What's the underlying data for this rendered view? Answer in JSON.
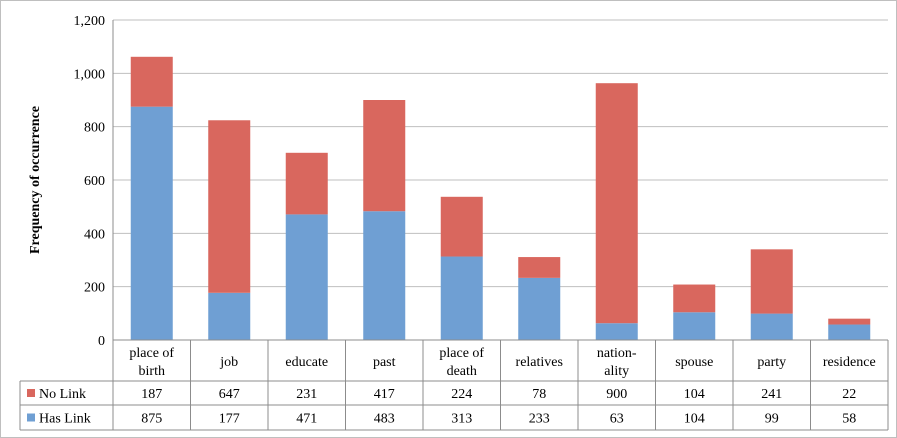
{
  "chart_data": {
    "type": "bar",
    "stacked": true,
    "title": "",
    "xlabel": "",
    "ylabel": "Frequency of occurrence",
    "ylim": [
      0,
      1200
    ],
    "yticks": [
      "0",
      "200",
      "400",
      "600",
      "800",
      "1,000",
      "1,200"
    ],
    "ytick_values": [
      0,
      200,
      400,
      600,
      800,
      1000,
      1200
    ],
    "grid": true,
    "legend": "data-table-left",
    "categories": [
      [
        "place of",
        "birth"
      ],
      [
        "job"
      ],
      [
        "educate"
      ],
      [
        "past"
      ],
      [
        "place of",
        "death"
      ],
      [
        "relatives"
      ],
      [
        "nation-",
        "ality"
      ],
      [
        "spouse"
      ],
      [
        "party"
      ],
      [
        "residence"
      ]
    ],
    "series": [
      {
        "name": "Has Link",
        "color": "#6f9fd3",
        "values": [
          875,
          177,
          471,
          483,
          313,
          233,
          63,
          104,
          99,
          58
        ]
      },
      {
        "name": "No Link",
        "color": "#d9675e",
        "values": [
          187,
          647,
          231,
          417,
          224,
          78,
          900,
          104,
          241,
          22
        ]
      }
    ],
    "table_rows": [
      {
        "name": "No Link",
        "color": "#d9675e",
        "values": [
          "187",
          "647",
          "231",
          "417",
          "224",
          "78",
          "900",
          "104",
          "241",
          "22"
        ]
      },
      {
        "name": "Has Link",
        "color": "#6f9fd3",
        "values": [
          "875",
          "177",
          "471",
          "483",
          "313",
          "233",
          "63",
          "104",
          "99",
          "58"
        ]
      }
    ]
  }
}
